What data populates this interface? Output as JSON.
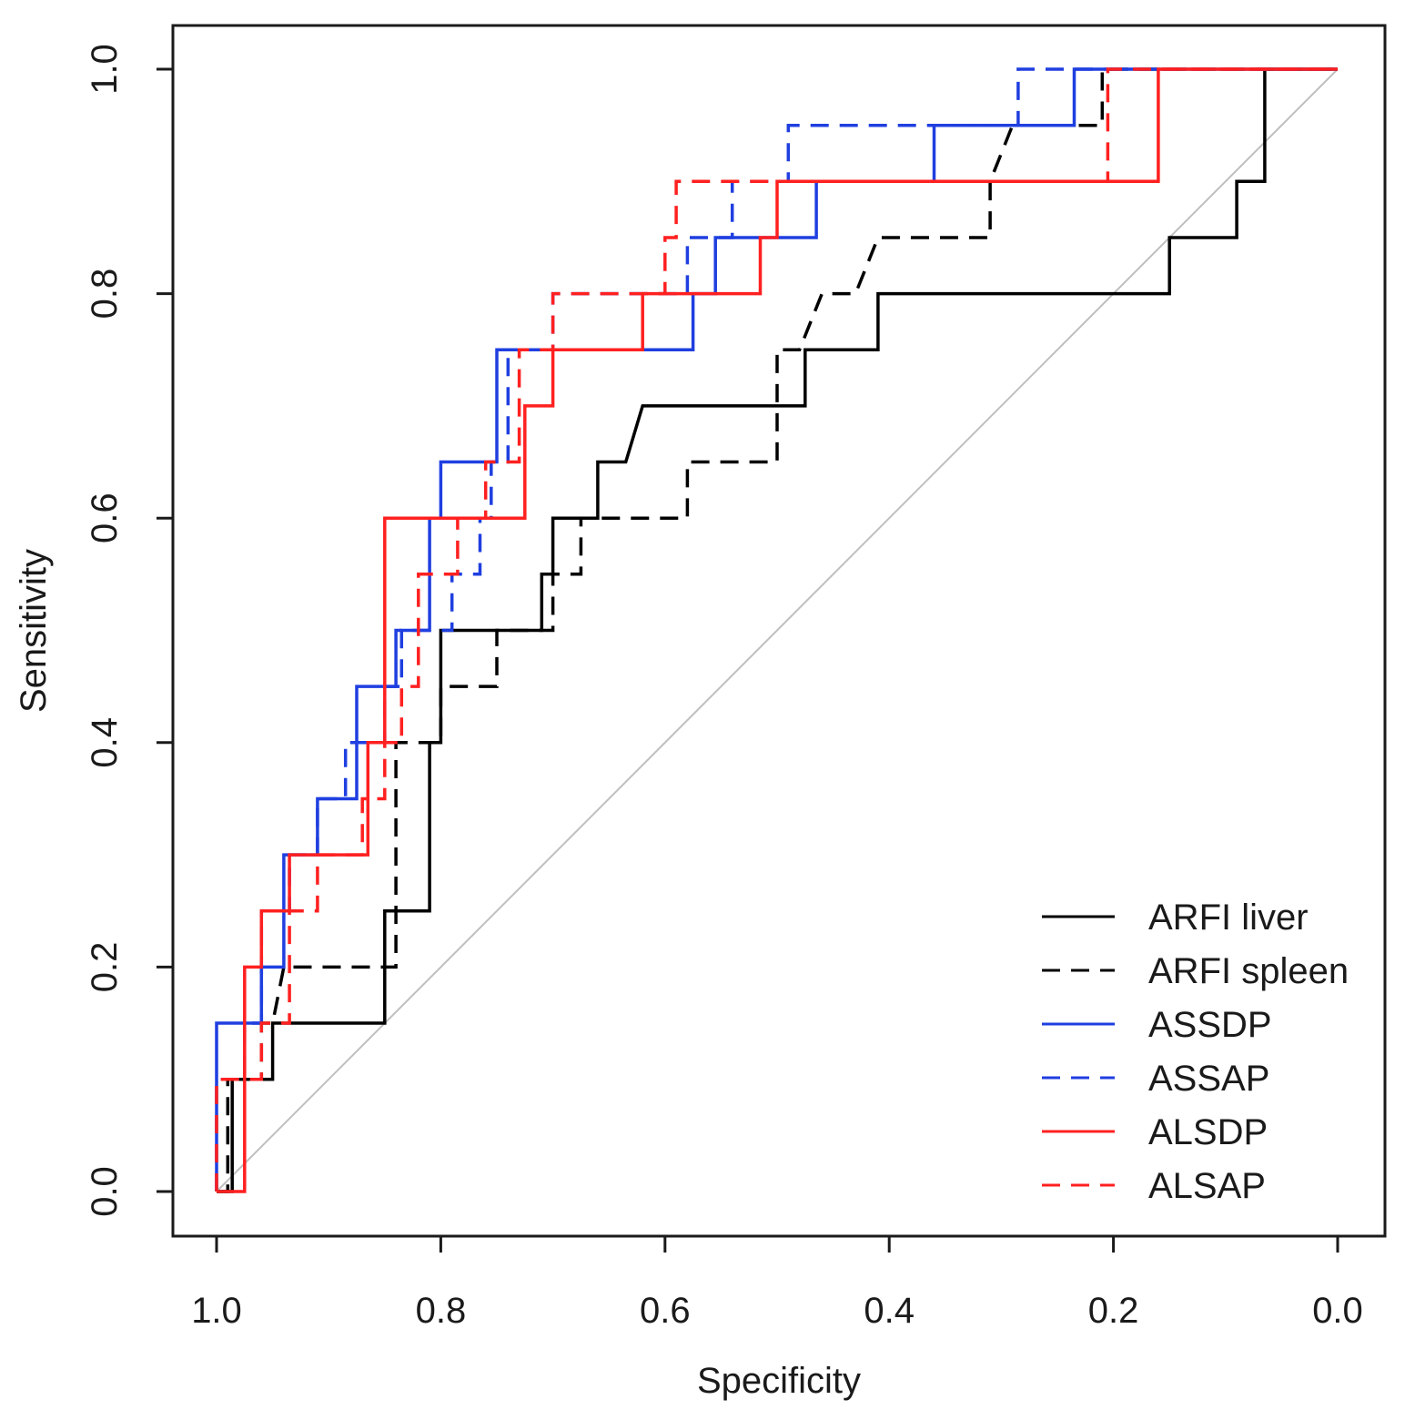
{
  "chart_data": {
    "type": "line",
    "xlabel": "Specificity",
    "ylabel": "Sensitivity",
    "xlim": [
      1.0,
      0.0
    ],
    "ylim": [
      0.0,
      1.0
    ],
    "x_reversed": true,
    "xticks": [
      "1.0",
      "0.8",
      "0.6",
      "0.4",
      "0.2",
      "0.0"
    ],
    "yticks": [
      "0.0",
      "0.2",
      "0.4",
      "0.6",
      "0.8",
      "1.0"
    ],
    "grid": false,
    "legend_position": "bottom-right",
    "reference_line": {
      "from": [
        1.0,
        0.0
      ],
      "to": [
        0.0,
        1.0
      ],
      "color": "#bfbfbf"
    },
    "series": [
      {
        "name": "ARFI liver",
        "color": "#000000",
        "dashed": false,
        "points": [
          [
            1.0,
            0.0
          ],
          [
            0.986,
            0.0
          ],
          [
            0.986,
            0.05
          ],
          [
            0.986,
            0.1
          ],
          [
            0.95,
            0.1
          ],
          [
            0.95,
            0.15
          ],
          [
            0.85,
            0.15
          ],
          [
            0.85,
            0.25
          ],
          [
            0.81,
            0.25
          ],
          [
            0.81,
            0.4
          ],
          [
            0.8,
            0.4
          ],
          [
            0.8,
            0.5
          ],
          [
            0.71,
            0.5
          ],
          [
            0.71,
            0.55
          ],
          [
            0.7,
            0.55
          ],
          [
            0.7,
            0.6
          ],
          [
            0.66,
            0.6
          ],
          [
            0.66,
            0.65
          ],
          [
            0.635,
            0.65
          ],
          [
            0.62,
            0.7
          ],
          [
            0.475,
            0.7
          ],
          [
            0.475,
            0.75
          ],
          [
            0.41,
            0.75
          ],
          [
            0.41,
            0.8
          ],
          [
            0.15,
            0.8
          ],
          [
            0.15,
            0.85
          ],
          [
            0.09,
            0.85
          ],
          [
            0.09,
            0.9
          ],
          [
            0.065,
            0.9
          ],
          [
            0.065,
            1.0
          ],
          [
            0.0,
            1.0
          ]
        ]
      },
      {
        "name": "ARFI spleen",
        "color": "#000000",
        "dashed": true,
        "points": [
          [
            1.0,
            0.0
          ],
          [
            0.99,
            0.0
          ],
          [
            0.99,
            0.1
          ],
          [
            0.96,
            0.1
          ],
          [
            0.96,
            0.15
          ],
          [
            0.95,
            0.15
          ],
          [
            0.94,
            0.2
          ],
          [
            0.84,
            0.2
          ],
          [
            0.84,
            0.4
          ],
          [
            0.8,
            0.4
          ],
          [
            0.8,
            0.45
          ],
          [
            0.75,
            0.45
          ],
          [
            0.75,
            0.5
          ],
          [
            0.7,
            0.5
          ],
          [
            0.7,
            0.55
          ],
          [
            0.675,
            0.55
          ],
          [
            0.675,
            0.6
          ],
          [
            0.58,
            0.6
          ],
          [
            0.58,
            0.65
          ],
          [
            0.5,
            0.65
          ],
          [
            0.5,
            0.75
          ],
          [
            0.48,
            0.75
          ],
          [
            0.46,
            0.8
          ],
          [
            0.43,
            0.8
          ],
          [
            0.41,
            0.85
          ],
          [
            0.31,
            0.85
          ],
          [
            0.31,
            0.9
          ],
          [
            0.29,
            0.95
          ],
          [
            0.21,
            0.95
          ],
          [
            0.21,
            1.0
          ],
          [
            0.0,
            1.0
          ]
        ]
      },
      {
        "name": "ASSDP",
        "color": "#1f3fe0",
        "dashed": false,
        "points": [
          [
            1.0,
            0.0
          ],
          [
            1.0,
            0.15
          ],
          [
            0.96,
            0.15
          ],
          [
            0.96,
            0.2
          ],
          [
            0.94,
            0.2
          ],
          [
            0.94,
            0.3
          ],
          [
            0.91,
            0.3
          ],
          [
            0.91,
            0.35
          ],
          [
            0.875,
            0.35
          ],
          [
            0.875,
            0.45
          ],
          [
            0.84,
            0.45
          ],
          [
            0.84,
            0.5
          ],
          [
            0.81,
            0.5
          ],
          [
            0.81,
            0.6
          ],
          [
            0.8,
            0.6
          ],
          [
            0.8,
            0.65
          ],
          [
            0.75,
            0.65
          ],
          [
            0.75,
            0.75
          ],
          [
            0.62,
            0.75
          ],
          [
            0.62,
            0.75
          ],
          [
            0.575,
            0.75
          ],
          [
            0.575,
            0.8
          ],
          [
            0.555,
            0.8
          ],
          [
            0.555,
            0.85
          ],
          [
            0.465,
            0.85
          ],
          [
            0.465,
            0.9
          ],
          [
            0.36,
            0.9
          ],
          [
            0.36,
            0.95
          ],
          [
            0.235,
            0.95
          ],
          [
            0.235,
            1.0
          ],
          [
            0.0,
            1.0
          ]
        ]
      },
      {
        "name": "ASSAP",
        "color": "#1f3fe0",
        "dashed": true,
        "points": [
          [
            1.0,
            0.0
          ],
          [
            1.0,
            0.1
          ],
          [
            0.975,
            0.1
          ],
          [
            0.975,
            0.15
          ],
          [
            0.96,
            0.15
          ],
          [
            0.96,
            0.25
          ],
          [
            0.935,
            0.25
          ],
          [
            0.935,
            0.3
          ],
          [
            0.91,
            0.3
          ],
          [
            0.91,
            0.35
          ],
          [
            0.885,
            0.35
          ],
          [
            0.885,
            0.4
          ],
          [
            0.87,
            0.4
          ],
          [
            0.87,
            0.4
          ],
          [
            0.85,
            0.4
          ],
          [
            0.85,
            0.45
          ],
          [
            0.835,
            0.45
          ],
          [
            0.835,
            0.5
          ],
          [
            0.79,
            0.5
          ],
          [
            0.79,
            0.55
          ],
          [
            0.765,
            0.55
          ],
          [
            0.765,
            0.6
          ],
          [
            0.755,
            0.6
          ],
          [
            0.755,
            0.65
          ],
          [
            0.74,
            0.65
          ],
          [
            0.74,
            0.75
          ],
          [
            0.7,
            0.75
          ],
          [
            0.7,
            0.8
          ],
          [
            0.6,
            0.8
          ],
          [
            0.58,
            0.8
          ],
          [
            0.58,
            0.85
          ],
          [
            0.54,
            0.85
          ],
          [
            0.54,
            0.9
          ],
          [
            0.49,
            0.9
          ],
          [
            0.49,
            0.95
          ],
          [
            0.285,
            0.95
          ],
          [
            0.285,
            1.0
          ],
          [
            0.0,
            1.0
          ]
        ]
      },
      {
        "name": "ALSDP",
        "color": "#ff2020",
        "dashed": false,
        "points": [
          [
            1.0,
            0.0
          ],
          [
            0.975,
            0.0
          ],
          [
            0.975,
            0.1
          ],
          [
            0.975,
            0.2
          ],
          [
            0.96,
            0.2
          ],
          [
            0.96,
            0.25
          ],
          [
            0.935,
            0.25
          ],
          [
            0.935,
            0.3
          ],
          [
            0.865,
            0.3
          ],
          [
            0.865,
            0.4
          ],
          [
            0.85,
            0.4
          ],
          [
            0.85,
            0.6
          ],
          [
            0.725,
            0.6
          ],
          [
            0.725,
            0.7
          ],
          [
            0.7,
            0.7
          ],
          [
            0.7,
            0.75
          ],
          [
            0.62,
            0.75
          ],
          [
            0.62,
            0.8
          ],
          [
            0.515,
            0.8
          ],
          [
            0.515,
            0.85
          ],
          [
            0.5,
            0.85
          ],
          [
            0.5,
            0.9
          ],
          [
            0.16,
            0.9
          ],
          [
            0.16,
            1.0
          ],
          [
            0.0,
            1.0
          ]
        ]
      },
      {
        "name": "ALSAP",
        "color": "#ff2020",
        "dashed": true,
        "points": [
          [
            1.0,
            0.0
          ],
          [
            1.0,
            0.1
          ],
          [
            0.975,
            0.1
          ],
          [
            0.975,
            0.1
          ],
          [
            0.96,
            0.1
          ],
          [
            0.96,
            0.15
          ],
          [
            0.935,
            0.15
          ],
          [
            0.935,
            0.25
          ],
          [
            0.91,
            0.25
          ],
          [
            0.91,
            0.3
          ],
          [
            0.87,
            0.3
          ],
          [
            0.87,
            0.35
          ],
          [
            0.85,
            0.35
          ],
          [
            0.85,
            0.4
          ],
          [
            0.835,
            0.4
          ],
          [
            0.835,
            0.45
          ],
          [
            0.82,
            0.45
          ],
          [
            0.82,
            0.55
          ],
          [
            0.785,
            0.55
          ],
          [
            0.785,
            0.6
          ],
          [
            0.76,
            0.6
          ],
          [
            0.76,
            0.65
          ],
          [
            0.73,
            0.65
          ],
          [
            0.73,
            0.75
          ],
          [
            0.7,
            0.75
          ],
          [
            0.7,
            0.8
          ],
          [
            0.6,
            0.8
          ],
          [
            0.6,
            0.85
          ],
          [
            0.59,
            0.85
          ],
          [
            0.59,
            0.9
          ],
          [
            0.205,
            0.9
          ],
          [
            0.205,
            1.0
          ],
          [
            0.0,
            1.0
          ]
        ]
      }
    ]
  }
}
